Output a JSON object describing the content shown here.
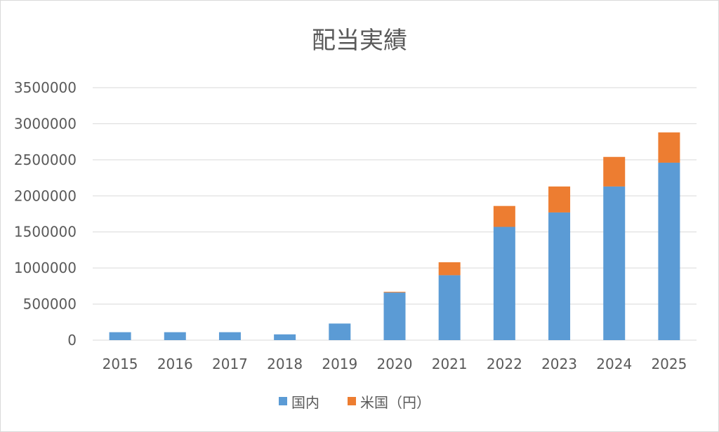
{
  "chart_data": {
    "type": "bar",
    "stacked": true,
    "title": "配当実績",
    "xlabel": "",
    "ylabel": "",
    "ylim": [
      0,
      3500000
    ],
    "yticks": [
      0,
      500000,
      1000000,
      1500000,
      2000000,
      2500000,
      3000000,
      3500000
    ],
    "grid": true,
    "legend_position": "bottom",
    "categories": [
      "2015",
      "2016",
      "2017",
      "2018",
      "2019",
      "2020",
      "2021",
      "2022",
      "2023",
      "2024",
      "2025"
    ],
    "series": [
      {
        "name": "国内",
        "color": "#5B9BD5",
        "values": [
          110000,
          110000,
          110000,
          80000,
          230000,
          660000,
          900000,
          1570000,
          1770000,
          2130000,
          2460000
        ]
      },
      {
        "name": "米国（円）",
        "color": "#ED7D31",
        "values": [
          0,
          0,
          0,
          0,
          0,
          10000,
          180000,
          290000,
          360000,
          410000,
          420000
        ]
      }
    ]
  }
}
